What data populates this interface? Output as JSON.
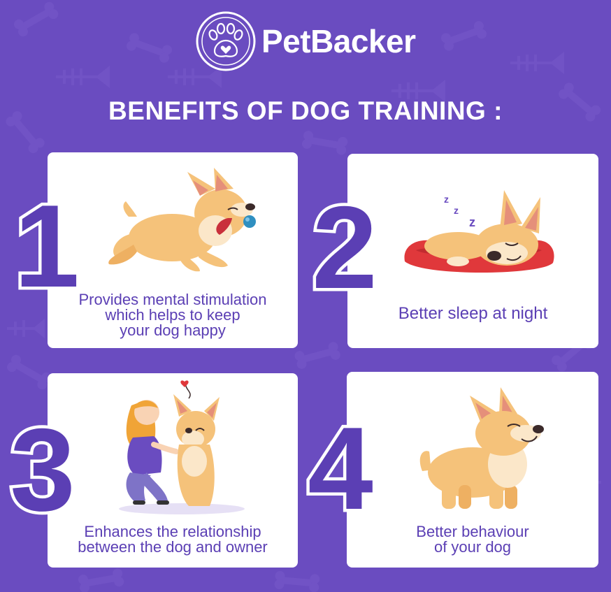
{
  "brand": {
    "name": "PetBacker"
  },
  "title": "BENEFITS OF DOG TRAINING :",
  "colors": {
    "background": "#6a4cc0",
    "accent": "#5b3fb4",
    "card": "#ffffff",
    "dog": "#f5c27a",
    "bed": "#e0383b"
  },
  "benefits": [
    {
      "number": "1",
      "lines": [
        "Provides mental stimulation",
        "which helps to keep",
        "your dog happy"
      ]
    },
    {
      "number": "2",
      "lines": [
        "Better sleep at night"
      ]
    },
    {
      "number": "3",
      "lines": [
        "Enhances the relationship",
        "between the dog and owner"
      ]
    },
    {
      "number": "4",
      "lines": [
        "Better behaviour",
        "of your dog"
      ]
    }
  ]
}
